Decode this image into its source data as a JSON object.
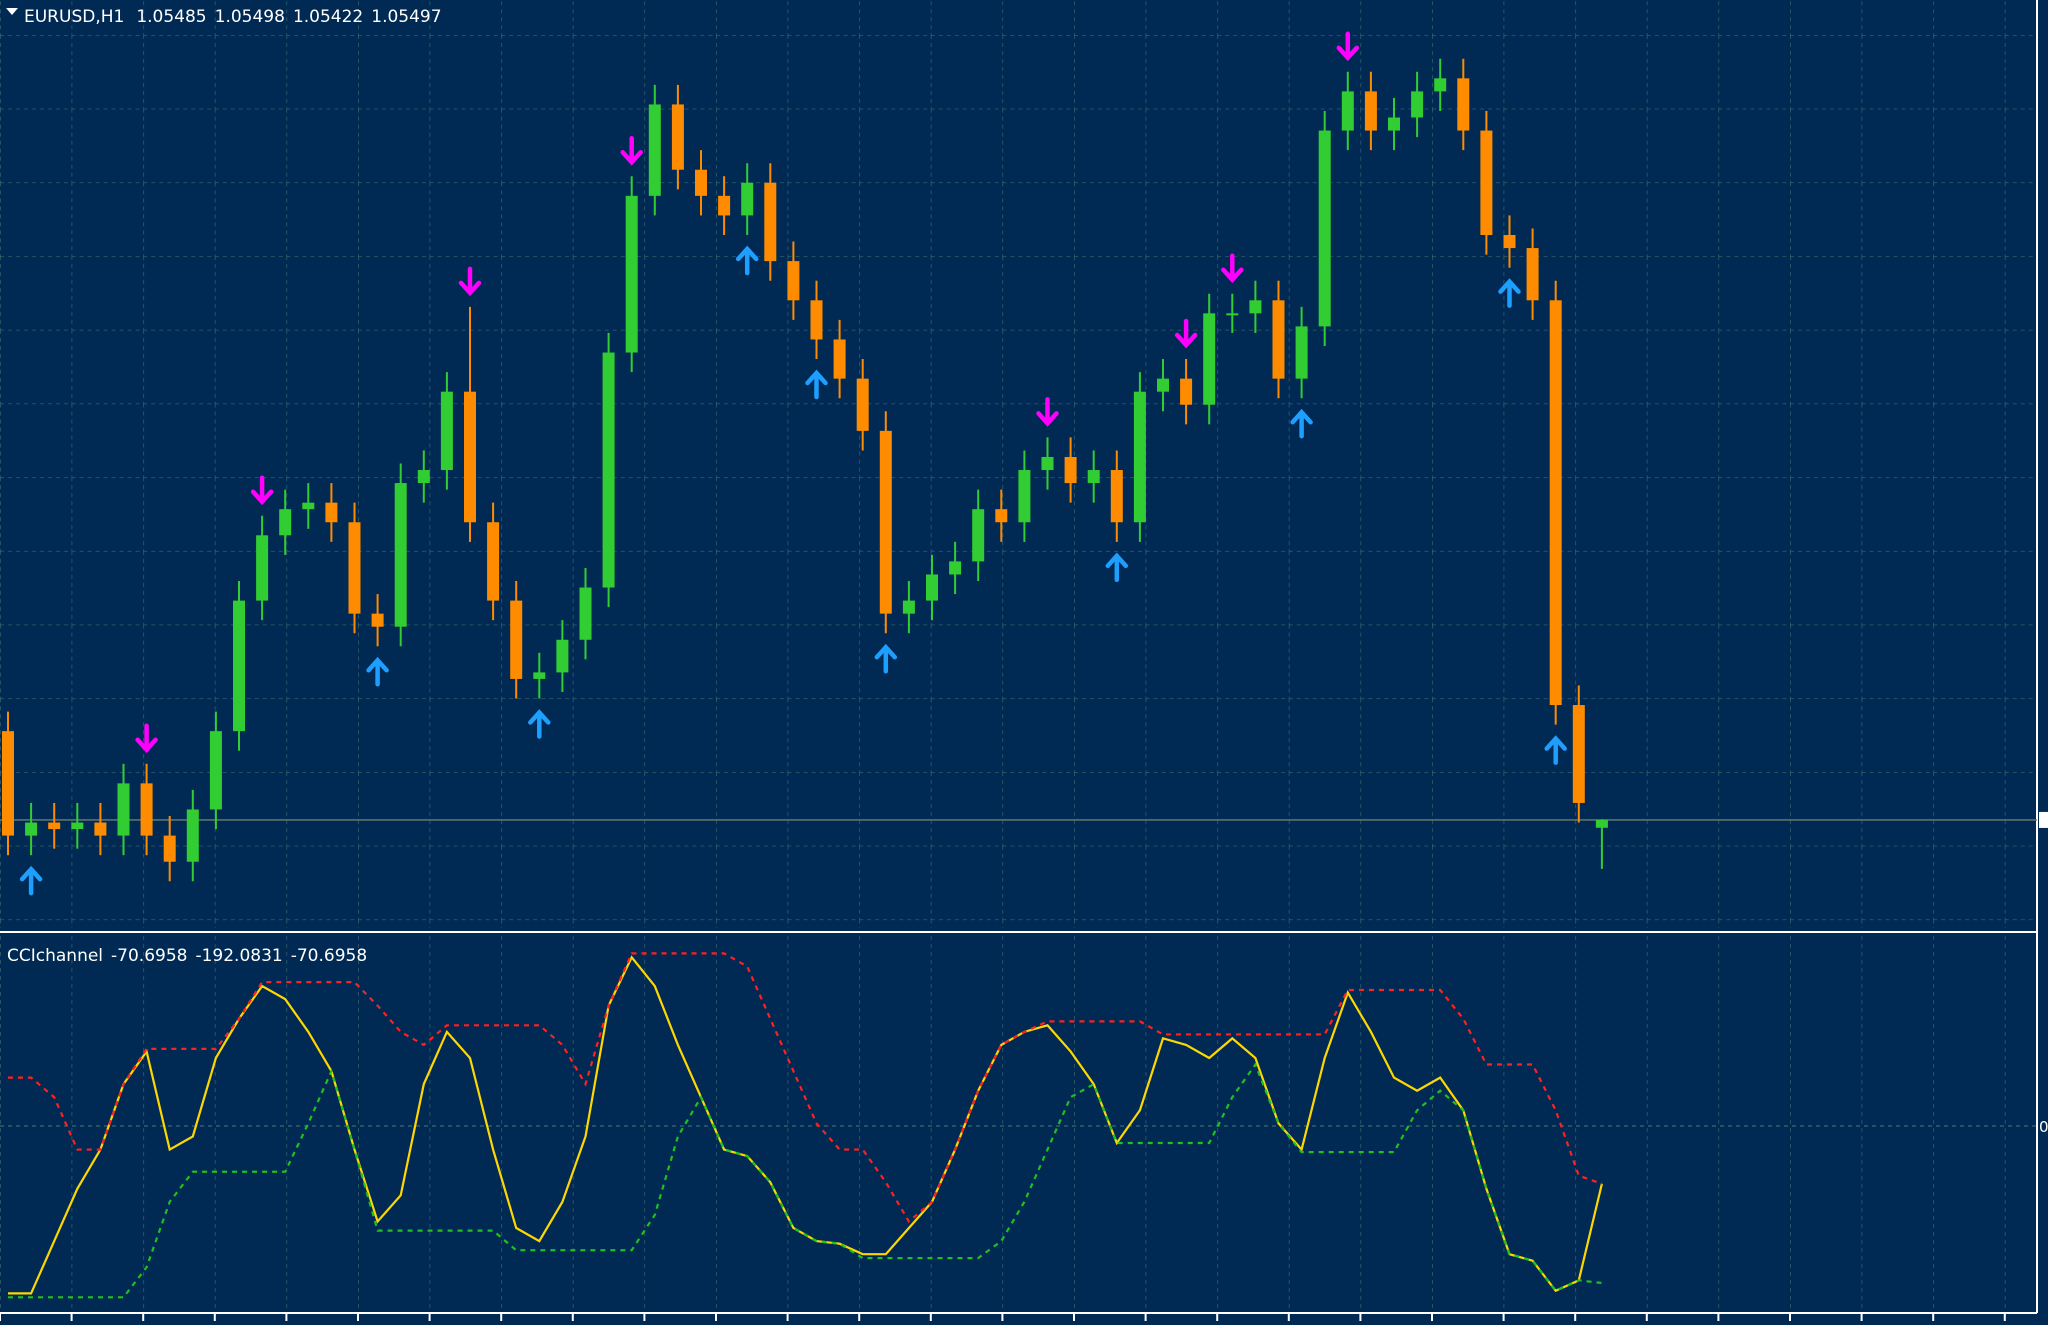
{
  "chart_data": [
    {
      "type": "candlestick",
      "title": "EURUSD,H1",
      "open": [
        1.05633,
        1.05473,
        1.05493,
        1.05483,
        1.05493,
        1.05473,
        1.05553,
        1.05473,
        1.05433,
        1.05513,
        1.05633,
        1.05833,
        1.05933,
        1.05973,
        1.05983,
        1.05953,
        1.05813,
        1.05793,
        1.06013,
        1.06033,
        1.06153,
        1.05953,
        1.05833,
        1.05713,
        1.05723,
        1.05773,
        1.05853,
        1.06213,
        1.06453,
        1.06593,
        1.06493,
        1.06453,
        1.06423,
        1.06473,
        1.06353,
        1.06293,
        1.06233,
        1.06173,
        1.06093,
        1.05813,
        1.05833,
        1.05873,
        1.05893,
        1.05973,
        1.05953,
        1.06033,
        1.06053,
        1.06013,
        1.06033,
        1.05953,
        1.06153,
        1.06173,
        1.06133,
        1.06273,
        1.06273,
        1.06293,
        1.06173,
        1.06253,
        1.06553,
        1.06613,
        1.06553,
        1.06573,
        1.06613,
        1.06633,
        1.06553,
        1.06393,
        1.06373,
        1.06293,
        1.05673,
        1.05485
      ],
      "high": [
        1.05663,
        1.05523,
        1.05523,
        1.05523,
        1.05523,
        1.05583,
        1.05583,
        1.05503,
        1.05543,
        1.05663,
        1.05863,
        1.05963,
        1.06003,
        1.06013,
        1.06013,
        1.05983,
        1.05843,
        1.06043,
        1.06063,
        1.06183,
        1.06283,
        1.05983,
        1.05863,
        1.05753,
        1.05803,
        1.05883,
        1.06243,
        1.06483,
        1.06623,
        1.06623,
        1.06523,
        1.06483,
        1.06503,
        1.06503,
        1.06383,
        1.06323,
        1.06263,
        1.06203,
        1.06123,
        1.05863,
        1.05903,
        1.05923,
        1.06003,
        1.06003,
        1.06063,
        1.06083,
        1.06083,
        1.06063,
        1.06063,
        1.06183,
        1.06203,
        1.06203,
        1.06303,
        1.06303,
        1.06323,
        1.06323,
        1.06283,
        1.06583,
        1.06643,
        1.06643,
        1.06603,
        1.06643,
        1.06663,
        1.06663,
        1.06583,
        1.06423,
        1.06403,
        1.06323,
        1.05703,
        1.05498
      ],
      "low": [
        1.05443,
        1.05443,
        1.05453,
        1.05453,
        1.05443,
        1.05443,
        1.05443,
        1.05403,
        1.05403,
        1.05483,
        1.05603,
        1.05803,
        1.05903,
        1.05943,
        1.05923,
        1.05783,
        1.05763,
        1.05763,
        1.05983,
        1.06003,
        1.05923,
        1.05803,
        1.05683,
        1.05683,
        1.05693,
        1.05743,
        1.05823,
        1.06183,
        1.06423,
        1.06463,
        1.06423,
        1.06393,
        1.06393,
        1.06323,
        1.06263,
        1.06203,
        1.06143,
        1.06063,
        1.05783,
        1.05783,
        1.05803,
        1.05843,
        1.05863,
        1.05923,
        1.05923,
        1.06003,
        1.05983,
        1.05983,
        1.05923,
        1.05923,
        1.06123,
        1.06103,
        1.06103,
        1.06243,
        1.06243,
        1.06143,
        1.06143,
        1.06223,
        1.06523,
        1.06523,
        1.06523,
        1.06543,
        1.06583,
        1.06523,
        1.06363,
        1.06343,
        1.06263,
        1.05643,
        1.05493,
        1.05422
      ],
      "close": [
        1.05473,
        1.05493,
        1.05483,
        1.05493,
        1.05473,
        1.05553,
        1.05473,
        1.05433,
        1.05513,
        1.05633,
        1.05833,
        1.05933,
        1.05973,
        1.05983,
        1.05953,
        1.05813,
        1.05793,
        1.06013,
        1.06033,
        1.06153,
        1.05953,
        1.05833,
        1.05713,
        1.05723,
        1.05773,
        1.05853,
        1.06213,
        1.06453,
        1.06593,
        1.06493,
        1.06453,
        1.06423,
        1.06473,
        1.06353,
        1.06293,
        1.06233,
        1.06173,
        1.06093,
        1.05813,
        1.05833,
        1.05873,
        1.05893,
        1.05973,
        1.05953,
        1.06033,
        1.06053,
        1.06013,
        1.06033,
        1.05953,
        1.06153,
        1.06173,
        1.06133,
        1.06273,
        1.06273,
        1.06293,
        1.06173,
        1.06253,
        1.06553,
        1.06613,
        1.06553,
        1.06573,
        1.06613,
        1.06633,
        1.06553,
        1.06393,
        1.06373,
        1.06293,
        1.05673,
        1.05523,
        1.05497
      ],
      "signals": {
        "up": [
          1,
          16,
          23,
          32,
          35,
          38,
          48,
          56,
          65,
          67
        ],
        "down": [
          6,
          11,
          20,
          27,
          45,
          51,
          53,
          58
        ]
      },
      "bull_color": "#32cd32",
      "bear_color": "#ff8c00",
      "up_color": "#1e9fff",
      "down_color": "#ff00ff",
      "ylim": [
        1.05333,
        1.06753
      ]
    },
    {
      "type": "line",
      "title": "CCIchannel",
      "series": [
        {
          "color": "#ffd700",
          "values": [
            -204.8,
            -204.8,
            -140.8,
            -76.8,
            -28.8,
            51.2,
            91.2,
            -28.8,
            -12.8,
            83.2,
            131.2,
            171.2,
            155.2,
            115.2,
            67.2,
            -28.8,
            -116.8,
            -84.8,
            51.2,
            115.2,
            83.2,
            -28.8,
            -124.8,
            -140.8,
            -92.8,
            -12.8,
            147.2,
            206.4,
            171.2,
            99.2,
            35.2,
            -28.8,
            -36.8,
            -68.8,
            -124.8,
            -140.8,
            -144,
            -156.8,
            -156.8,
            -124.8,
            -92.8,
            -28.8,
            43.2,
            99.2,
            115.2,
            123.2,
            91.2,
            51.2,
            -20.8,
            19.2,
            107.2,
            99.2,
            83.2,
            107.2,
            83.2,
            3.2,
            -28.8,
            83.2,
            163.2,
            115.2,
            59.2,
            43.2,
            59.2,
            19.2,
            -76.8,
            -156.8,
            -164.8,
            -201.6,
            -188.8,
            -70.6958
          ]
        },
        {
          "color": "#20c020",
          "dashed": true,
          "values": [
            -209.6,
            -209.6,
            -209.6,
            -209.6,
            -209.6,
            -209.6,
            -172.8,
            -92.8,
            -56,
            -56,
            -56,
            -56,
            -56,
            3.2,
            67.2,
            -28.8,
            -128,
            -128,
            -128,
            -128,
            -128,
            -128,
            -152,
            -152,
            -152,
            -152,
            -152,
            -152,
            -108.8,
            -12.8,
            35.2,
            -28.8,
            -36.8,
            -68.8,
            -124.8,
            -140.8,
            -144,
            -161.6,
            -161.6,
            -161.6,
            -161.6,
            -161.6,
            -161.6,
            -140.8,
            -92.8,
            -28.8,
            35.2,
            51.2,
            -20.8,
            -20.8,
            -20.8,
            -20.8,
            -20.8,
            35.2,
            75.2,
            3.2,
            -32,
            -32,
            -32,
            -32,
            -32,
            19.2,
            43.2,
            19.2,
            -76.8,
            -156.8,
            -164.8,
            -201.6,
            -188.8,
            -192.0831
          ]
        },
        {
          "color": "#ff2020",
          "dashed": true,
          "values": [
            59.2,
            59.2,
            35.2,
            -28.8,
            -28.8,
            51.2,
            94.4,
            94.4,
            94.4,
            94.4,
            131.2,
            176,
            176,
            176,
            176,
            176,
            147.2,
            115.2,
            99.2,
            123.2,
            123.2,
            123.2,
            123.2,
            123.2,
            99.2,
            51.2,
            147.2,
            211.2,
            211.2,
            211.2,
            211.2,
            211.2,
            195.2,
            131.2,
            67.2,
            3.2,
            -28.8,
            -28.8,
            -68.8,
            -116.8,
            -92.8,
            -28.8,
            43.2,
            99.2,
            115.2,
            128,
            128,
            128,
            128,
            128,
            112,
            112,
            112,
            112,
            112,
            112,
            112,
            112,
            166.4,
            166.4,
            166.4,
            166.4,
            166.4,
            131.2,
            75.2,
            75.2,
            75.2,
            19.2,
            -60.8,
            -70.6958
          ]
        }
      ],
      "ylim": [
        -230,
        230
      ],
      "yticks": [
        0
      ]
    }
  ]
}
